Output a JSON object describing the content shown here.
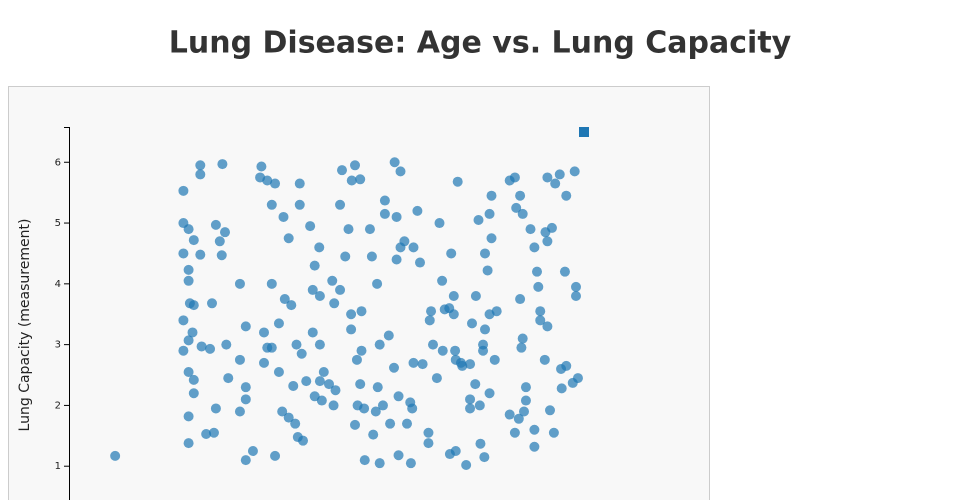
{
  "chart_data": {
    "type": "scatter",
    "title": "Lung Disease: Age vs. Lung Capacity",
    "y_label": "Lung Capacity (measurement)",
    "xlim": [
      0,
      83
    ],
    "ylim": [
      0,
      6.58
    ],
    "yticks": [
      1,
      2,
      3,
      4,
      5,
      6
    ],
    "x": [
      7.1,
      17.6,
      17.6,
      18.4,
      17.6,
      18.4,
      18.4,
      18.6,
      19.2,
      17.6,
      19.0,
      18.4,
      17.6,
      18.4,
      19.2,
      19.2,
      18.4,
      18.4,
      20.2,
      20.2,
      19.2,
      20.2,
      20.4,
      21.1,
      22.0,
      21.7,
      22.6,
      23.2,
      23.5,
      23.6,
      24.0,
      24.2,
      24.5,
      22.6,
      22.3,
      26.3,
      26.3,
      26.3,
      27.2,
      27.2,
      27.2,
      27.2,
      28.3,
      29.6,
      29.4,
      30.5,
      31.7,
      30.0,
      30.5,
      31.2,
      30.0,
      31.2,
      33.0,
      33.8,
      31.2,
      33.2,
      32.3,
      32.3,
      32.8,
      33.8,
      31.7,
      35.5,
      35.5,
      34.2,
      35.0,
      35.8,
      36.5,
      34.5,
      34.8,
      35.2,
      36.0,
      37.1,
      37.8,
      38.5,
      37.5,
      38.6,
      37.5,
      38.6,
      38.6,
      39.2,
      37.8,
      38.9,
      40.0,
      40.7,
      41.7,
      40.5,
      40.8,
      41.7,
      41.0,
      42.0,
      43.0,
      43.5,
      44.0,
      44.8,
      42.5,
      43.4,
      43.4,
      44.3,
      45.0,
      45.0,
      44.8,
      44.4,
      44.0,
      45.4,
      45.5,
      46.3,
      46.6,
      47.4,
      47.5,
      47.8,
      48.6,
      48.6,
      49.2,
      48.3,
      47.2,
      46.8,
      47.8,
      50.1,
      50.4,
      51.0,
      50.4,
      51.6,
      51.0,
      50.0,
      50.7,
      49.4,
      50.7,
      52.5,
      52.8,
      52.0,
      52.6,
      53.6,
      53.0,
      54.0,
      53.0,
      54.4,
      55.7,
      55.5,
      56.0,
      55.3,
      55.3,
      56.6,
      57.0,
      57.4,
      57.8,
      58.5,
      59.2,
      59.2,
      59.4,
      59.8,
      58.8,
      59.5,
      60.3,
      58.6,
      59.5,
      61.1,
      61.7,
      61.7,
      61.7,
      62.5,
      63.2,
      63.7,
      62.6,
      62.0,
      63.3,
      63.9,
      64.4,
      63.0,
      64.7,
      65.0,
      65.0,
      64.0,
      63.7,
      64.0,
      64.7,
      65.8,
      64.7,
      65.5,
      67.8,
      68.6,
      68.8,
      69.8,
      69.4,
      67.8,
      68.6,
      69.2,
      70.3,
      69.4,
      69.8,
      69.6,
      70.3,
      71.6,
      71.6,
      71.0,
      71.6,
      72.0,
      72.2,
      72.5,
      72.5,
      73.3,
      73.6,
      74.3,
      73.6,
      73.2,
      74.0,
      74.6,
      73.6,
      74.8,
      75.5,
      76.5,
      77.8,
      76.3,
      78.0,
      78.0,
      75.7,
      76.5,
      77.5,
      78.3,
      75.8,
      70.0,
      60.5,
      57.5
    ],
    "series": [
      {
        "color": "#1f77b4",
        "values": [
          1.17,
          5.53,
          5.0,
          4.9,
          4.5,
          4.23,
          4.05,
          3.68,
          3.65,
          3.4,
          3.2,
          3.07,
          2.9,
          2.55,
          2.42,
          2.2,
          1.82,
          1.38,
          5.95,
          5.8,
          4.72,
          4.48,
          2.97,
          1.53,
          3.68,
          2.93,
          4.97,
          4.7,
          4.47,
          5.97,
          4.85,
          3.0,
          2.45,
          1.95,
          1.55,
          4.0,
          2.75,
          1.9,
          3.3,
          2.3,
          2.1,
          1.1,
          1.25,
          5.93,
          5.75,
          5.7,
          5.65,
          3.2,
          2.95,
          2.95,
          2.7,
          5.3,
          5.1,
          4.75,
          4.0,
          3.75,
          3.35,
          2.55,
          1.9,
          1.8,
          1.17,
          5.65,
          5.3,
          3.65,
          3.0,
          2.85,
          2.4,
          2.32,
          1.7,
          1.48,
          1.42,
          4.95,
          4.3,
          4.6,
          3.9,
          3.8,
          3.2,
          3.0,
          2.4,
          2.55,
          2.15,
          2.08,
          2.35,
          2.0,
          5.3,
          4.05,
          3.68,
          3.9,
          2.25,
          5.87,
          4.9,
          5.7,
          5.95,
          5.72,
          4.45,
          3.5,
          3.25,
          2.75,
          3.55,
          2.9,
          2.35,
          2.0,
          1.68,
          1.95,
          1.1,
          4.9,
          4.45,
          4.0,
          2.3,
          3.0,
          5.15,
          5.37,
          3.15,
          2.0,
          1.9,
          1.52,
          1.05,
          6.0,
          5.1,
          5.85,
          4.4,
          4.7,
          4.6,
          2.62,
          2.15,
          1.7,
          1.18,
          2.05,
          1.95,
          1.7,
          1.05,
          5.2,
          4.6,
          4.35,
          2.7,
          2.68,
          3.55,
          3.4,
          3.0,
          1.55,
          1.38,
          2.45,
          5.0,
          4.05,
          3.58,
          3.6,
          3.5,
          3.8,
          2.9,
          5.68,
          4.5,
          2.75,
          2.7,
          1.2,
          1.25,
          1.02,
          2.68,
          2.1,
          1.95,
          2.35,
          2.0,
          3.0,
          3.8,
          3.35,
          1.37,
          1.15,
          4.22,
          5.05,
          5.15,
          5.45,
          4.75,
          4.5,
          2.9,
          3.25,
          3.5,
          3.55,
          2.2,
          2.75,
          5.7,
          5.75,
          5.25,
          5.15,
          5.45,
          1.85,
          1.55,
          1.78,
          2.08,
          3.75,
          3.1,
          2.95,
          2.3,
          1.6,
          1.32,
          4.9,
          4.6,
          4.2,
          3.95,
          3.55,
          3.4,
          4.85,
          4.7,
          4.92,
          3.3,
          2.75,
          1.92,
          1.55,
          5.75,
          5.65,
          5.8,
          5.45,
          5.85,
          4.2,
          3.95,
          3.8,
          2.6,
          2.65,
          2.37,
          2.45,
          2.28,
          1.9,
          2.65,
          2.9
        ]
      }
    ]
  }
}
